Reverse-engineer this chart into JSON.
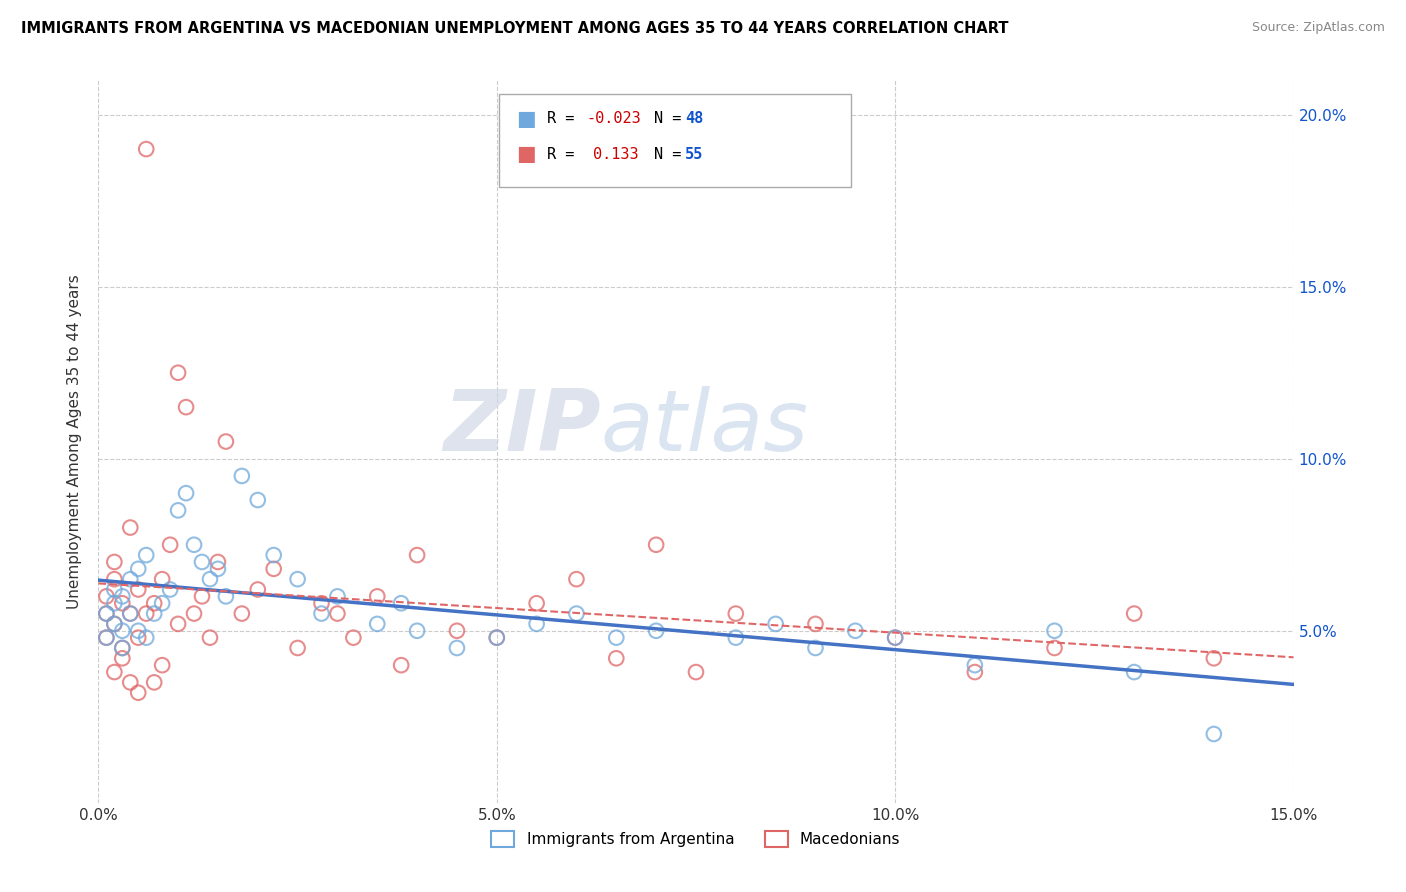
{
  "title": "IMMIGRANTS FROM ARGENTINA VS MACEDONIAN UNEMPLOYMENT AMONG AGES 35 TO 44 YEARS CORRELATION CHART",
  "source": "Source: ZipAtlas.com",
  "ylabel": "Unemployment Among Ages 35 to 44 years",
  "legend_labels": [
    "Immigrants from Argentina",
    "Macedonians"
  ],
  "r_argentina": -0.023,
  "n_argentina": 48,
  "r_macedonian": 0.133,
  "n_macedonian": 55,
  "x_min": 0.0,
  "x_max": 0.15,
  "y_min": 0.0,
  "y_max": 0.21,
  "x_ticks": [
    0.0,
    0.05,
    0.1,
    0.15
  ],
  "x_tick_labels": [
    "0.0%",
    "5.0%",
    "10.0%",
    "15.0%"
  ],
  "y_ticks": [
    0.05,
    0.1,
    0.15,
    0.2
  ],
  "y_tick_labels": [
    "5.0%",
    "10.0%",
    "15.0%",
    "20.0%"
  ],
  "color_argentina": "#6fa8dc",
  "color_macedonian": "#e06666",
  "color_argentina_line": "#4472c4",
  "color_macedonian_line": "#e06666",
  "color_r": "#cc0000",
  "color_n": "#1155cc",
  "watermark_zip": "ZIP",
  "watermark_atlas": "atlas",
  "argentina_scatter_x": [
    0.001,
    0.001,
    0.002,
    0.002,
    0.002,
    0.003,
    0.003,
    0.003,
    0.004,
    0.004,
    0.005,
    0.005,
    0.006,
    0.006,
    0.007,
    0.008,
    0.009,
    0.01,
    0.011,
    0.012,
    0.013,
    0.014,
    0.015,
    0.016,
    0.018,
    0.02,
    0.022,
    0.025,
    0.028,
    0.03,
    0.035,
    0.038,
    0.04,
    0.045,
    0.05,
    0.055,
    0.06,
    0.065,
    0.07,
    0.08,
    0.085,
    0.09,
    0.095,
    0.1,
    0.11,
    0.12,
    0.13,
    0.14
  ],
  "argentina_scatter_y": [
    0.048,
    0.055,
    0.052,
    0.058,
    0.062,
    0.045,
    0.05,
    0.06,
    0.055,
    0.065,
    0.05,
    0.068,
    0.048,
    0.072,
    0.055,
    0.058,
    0.062,
    0.085,
    0.09,
    0.075,
    0.07,
    0.065,
    0.068,
    0.06,
    0.095,
    0.088,
    0.072,
    0.065,
    0.055,
    0.06,
    0.052,
    0.058,
    0.05,
    0.045,
    0.048,
    0.052,
    0.055,
    0.048,
    0.05,
    0.048,
    0.052,
    0.045,
    0.05,
    0.048,
    0.04,
    0.05,
    0.038,
    0.02
  ],
  "macedonian_scatter_x": [
    0.001,
    0.001,
    0.001,
    0.002,
    0.002,
    0.002,
    0.002,
    0.003,
    0.003,
    0.003,
    0.004,
    0.004,
    0.004,
    0.005,
    0.005,
    0.005,
    0.006,
    0.006,
    0.007,
    0.007,
    0.008,
    0.008,
    0.009,
    0.01,
    0.01,
    0.011,
    0.012,
    0.013,
    0.014,
    0.015,
    0.016,
    0.018,
    0.02,
    0.022,
    0.025,
    0.028,
    0.03,
    0.032,
    0.035,
    0.038,
    0.04,
    0.045,
    0.05,
    0.055,
    0.06,
    0.065,
    0.07,
    0.075,
    0.08,
    0.09,
    0.1,
    0.11,
    0.12,
    0.13,
    0.14
  ],
  "macedonian_scatter_y": [
    0.055,
    0.06,
    0.048,
    0.052,
    0.065,
    0.038,
    0.07,
    0.045,
    0.058,
    0.042,
    0.055,
    0.08,
    0.035,
    0.048,
    0.062,
    0.032,
    0.055,
    0.19,
    0.058,
    0.035,
    0.065,
    0.04,
    0.075,
    0.052,
    0.125,
    0.115,
    0.055,
    0.06,
    0.048,
    0.07,
    0.105,
    0.055,
    0.062,
    0.068,
    0.045,
    0.058,
    0.055,
    0.048,
    0.06,
    0.04,
    0.072,
    0.05,
    0.048,
    0.058,
    0.065,
    0.042,
    0.075,
    0.038,
    0.055,
    0.052,
    0.048,
    0.038,
    0.045,
    0.055,
    0.042
  ]
}
